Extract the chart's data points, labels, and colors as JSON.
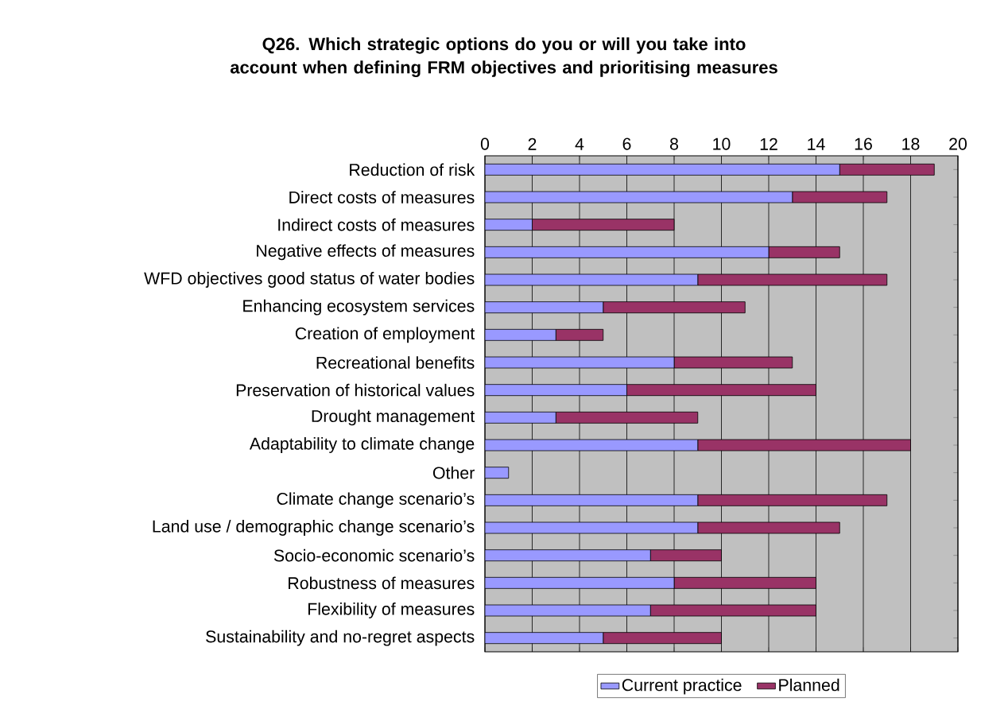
{
  "chart_data": {
    "type": "bar",
    "orientation": "horizontal",
    "stacked": true,
    "title": "Q26. Which strategic options do you or will you take into account when defining FRM objectives and prioritising measures",
    "categories": [
      "Reduction of risk",
      "Direct costs of measures",
      "Indirect costs of measures",
      "Negative effects of measures",
      "WFD objectives good status of water bodies",
      "Enhancing ecosystem services",
      "Creation of employment",
      "Recreational benefits",
      "Preservation of historical values",
      "Drought management",
      "Adaptability to climate change",
      "Other",
      "Climate change scenario’s",
      "Land use / demographic change scenario’s",
      "Socio-economic scenario’s",
      "Robustness of measures",
      "Flexibility of measures",
      "Sustainability and no-regret aspects"
    ],
    "series": [
      {
        "name": "Current practice",
        "color": "#9999ff",
        "values": [
          15,
          13,
          2,
          12,
          9,
          5,
          3,
          8,
          6,
          3,
          9,
          1,
          9,
          9,
          7,
          8,
          7,
          5
        ]
      },
      {
        "name": "Planned",
        "color": "#993366",
        "values": [
          4,
          4,
          6,
          3,
          8,
          6,
          2,
          5,
          8,
          6,
          9,
          0,
          8,
          6,
          3,
          6,
          7,
          5
        ]
      }
    ],
    "xlim": [
      0,
      20
    ],
    "xticks": [
      0,
      2,
      4,
      6,
      8,
      10,
      12,
      14,
      16,
      18,
      20
    ],
    "grid": "x",
    "legend": "bottom"
  }
}
